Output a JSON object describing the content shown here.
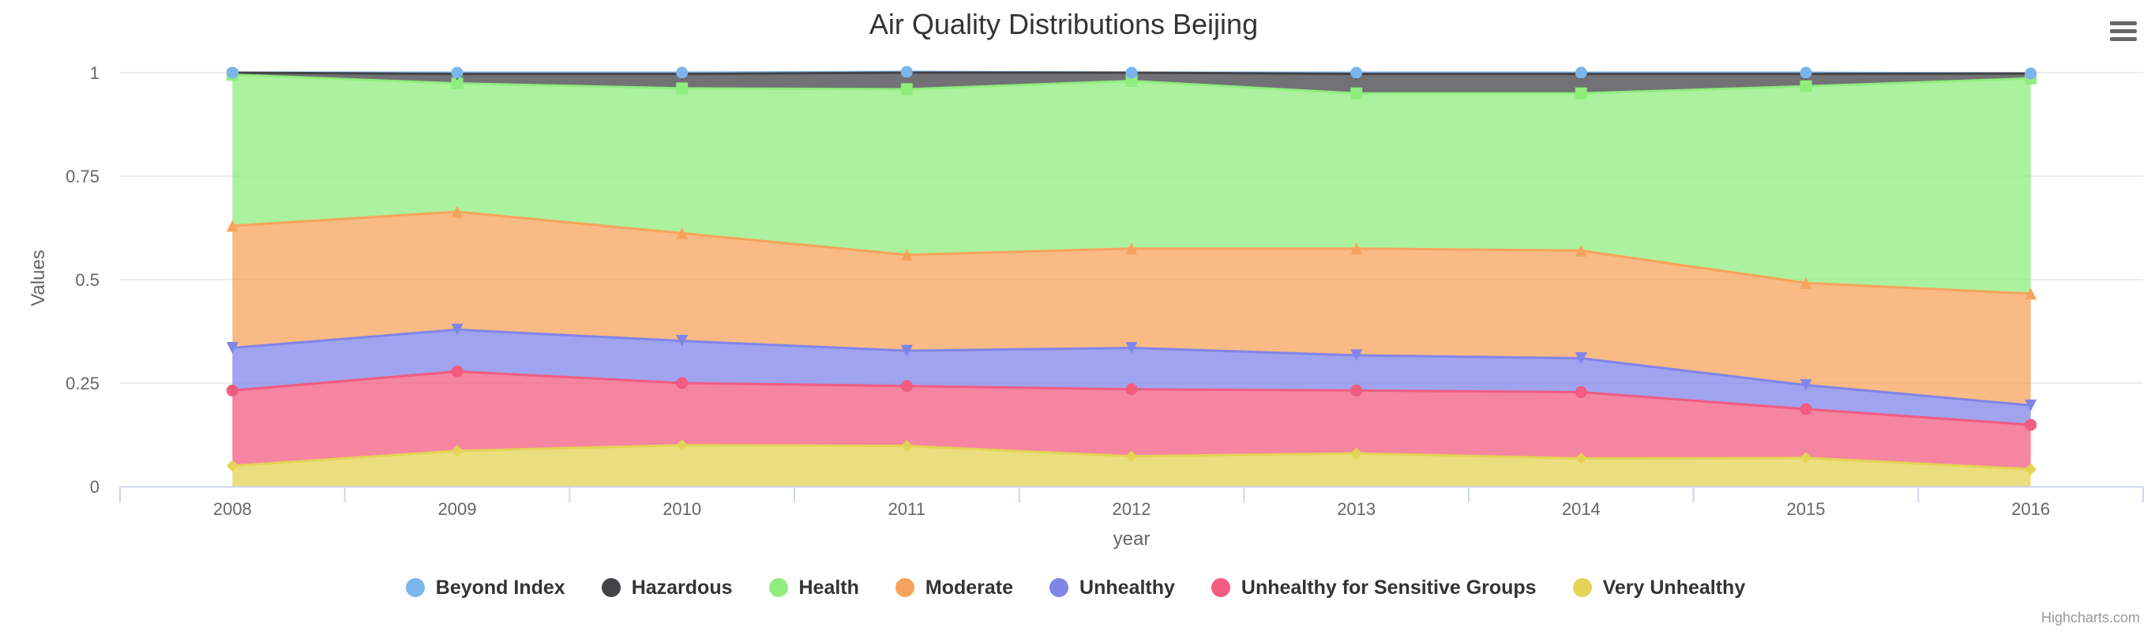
{
  "chart_data": {
    "type": "area",
    "stacking": "normal",
    "title": "Air Quality Distributions Beijing",
    "xlabel": "year",
    "ylabel": "Values",
    "x": [
      "2008",
      "2009",
      "2010",
      "2011",
      "2012",
      "2013",
      "2014",
      "2015",
      "2016"
    ],
    "ylim": [
      0,
      1
    ],
    "yticks": [
      0,
      0.25,
      0.5,
      0.75,
      1
    ],
    "ytick_labels": [
      "0",
      "0.25",
      "0.5",
      "0.75",
      "1"
    ],
    "grid": true,
    "legend_position": "bottom-center",
    "series": [
      {
        "name": "Beyond Index",
        "color": "#7cb5ec",
        "marker": "circle",
        "values": [
          0.0,
          0.003,
          0.003,
          0.002,
          0.0,
          0.003,
          0.003,
          0.003,
          0.0
        ]
      },
      {
        "name": "Hazardous",
        "color": "#434348",
        "marker": "diamond",
        "values": [
          0.005,
          0.023,
          0.035,
          0.04,
          0.02,
          0.047,
          0.047,
          0.03,
          0.012
        ]
      },
      {
        "name": "Health",
        "color": "#90ed7d",
        "marker": "square",
        "values": [
          0.365,
          0.31,
          0.35,
          0.4,
          0.405,
          0.375,
          0.38,
          0.475,
          0.52
        ]
      },
      {
        "name": "Moderate",
        "color": "#f7a35c",
        "marker": "triangle",
        "values": [
          0.295,
          0.285,
          0.26,
          0.232,
          0.24,
          0.258,
          0.26,
          0.247,
          0.27
        ]
      },
      {
        "name": "Unhealthy",
        "color": "#8085e9",
        "marker": "triangle-down",
        "values": [
          0.103,
          0.101,
          0.102,
          0.085,
          0.1,
          0.085,
          0.082,
          0.058,
          0.047
        ]
      },
      {
        "name": "Unhealthy for Sensitive Groups",
        "color": "#f15c80",
        "marker": "circle",
        "values": [
          0.182,
          0.192,
          0.15,
          0.145,
          0.162,
          0.152,
          0.16,
          0.118,
          0.107
        ]
      },
      {
        "name": "Very Unhealthy",
        "color": "#e4d354",
        "marker": "diamond",
        "values": [
          0.05,
          0.086,
          0.1,
          0.098,
          0.073,
          0.08,
          0.068,
          0.069,
          0.042
        ]
      }
    ]
  },
  "credits": "Highcharts.com",
  "menu": {
    "icon": "hamburger-menu-icon"
  }
}
